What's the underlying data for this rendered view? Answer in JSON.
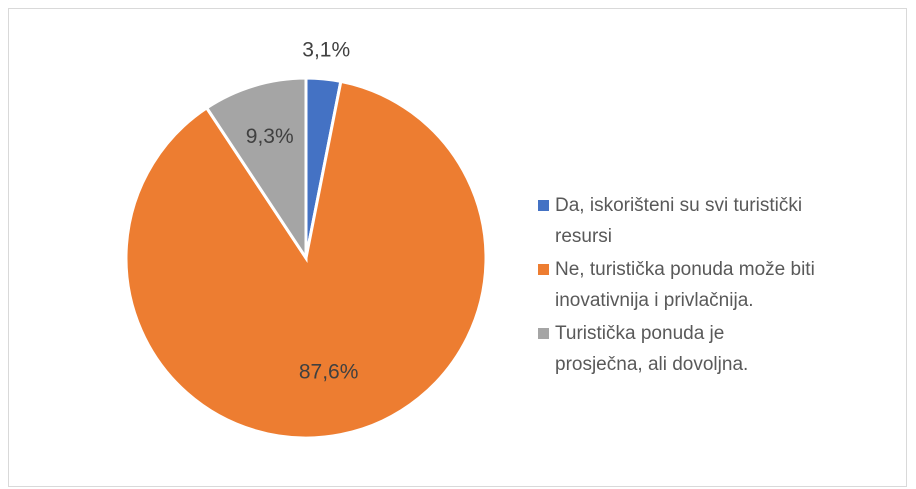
{
  "chart_data": {
    "type": "pie",
    "categories": [
      "Da, iskorišteni su svi turistički resursi",
      "Ne, turistička ponuda može biti inovativnija i privlačnija.",
      "Turistička ponuda je prosječna, ali dovoljna."
    ],
    "values": [
      3.1,
      87.6,
      9.3
    ],
    "value_labels": [
      "3,1%",
      "87,6%",
      "9,3%"
    ],
    "colors": [
      "#4472c4",
      "#ed7d31",
      "#a5a5a5"
    ],
    "legend": "right"
  }
}
